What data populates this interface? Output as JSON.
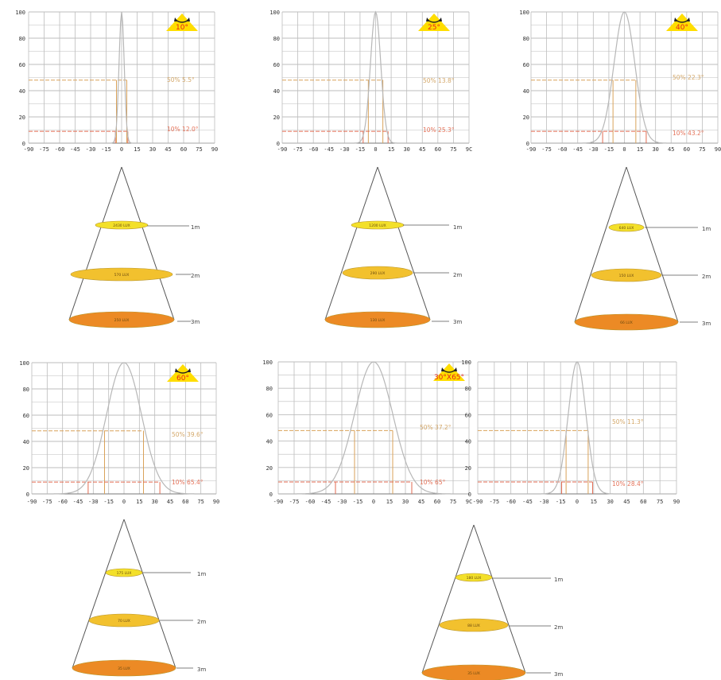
{
  "colors": {
    "grid": "#bdbdbd",
    "curve": "#b7b7b7",
    "half_line": "#d9a25a",
    "tenth_line": "#e26a50",
    "half_text": "#d4a86a",
    "tenth_text": "#e5735a",
    "badge_fill": "#ffdd00",
    "badge_text": "#e4261c",
    "ring1": "#f3e02a",
    "ring2": "#f2c12e",
    "ring3": "#ec8a25",
    "cone_line": "#555555"
  },
  "chart_data": [
    {
      "type": "line",
      "beam_label": "10°",
      "x_ticks": [
        "-90",
        "-75",
        "-60",
        "-45",
        "-30",
        "-15",
        "0",
        "15",
        "30",
        "45",
        "60",
        "75",
        "90"
      ],
      "y_ticks": [
        "0",
        "20",
        "40",
        "60",
        "80",
        "100"
      ],
      "xlim": [
        -90,
        90
      ],
      "ylim": [
        0,
        100
      ],
      "curve_width": 2.5,
      "half_angle": 5,
      "tenth_angle": 6,
      "half_label": "50% 5.5°",
      "tenth_label": "10% 12.0°",
      "cone": {
        "distances": [
          "1m",
          "2m",
          "3m"
        ],
        "lux": [
          "2430 LUX",
          "570 LUX",
          "250 LUX"
        ]
      }
    },
    {
      "type": "line",
      "beam_label": "25°",
      "x_ticks": [
        "-90",
        "-75",
        "-60",
        "-45",
        "-30",
        "-15",
        "0",
        "15",
        "30",
        "45",
        "60",
        "75",
        "9C"
      ],
      "y_ticks": [
        "0",
        "20",
        "40",
        "60",
        "80",
        "100"
      ],
      "xlim": [
        -90,
        90
      ],
      "ylim": [
        0,
        100
      ],
      "curve_width": 5,
      "half_angle": 7,
      "tenth_angle": 12,
      "half_label": "50% 13.8°",
      "tenth_label": "10% 25.3°",
      "cone": {
        "distances": [
          "1m",
          "2m",
          "3m"
        ],
        "lux": [
          "1200 LUX",
          "290 LUX",
          "130 LUX"
        ]
      }
    },
    {
      "type": "line",
      "beam_label": "40°",
      "x_ticks": [
        "-90",
        "-75",
        "-60",
        "-45",
        "-30",
        "-15",
        "0",
        "15",
        "30",
        "45",
        "60",
        "75",
        "90"
      ],
      "y_ticks": [
        "0",
        "20",
        "40",
        "60",
        "80",
        "100"
      ],
      "xlim": [
        -90,
        90
      ],
      "ylim": [
        0,
        100
      ],
      "curve_width": 10,
      "half_angle": 11,
      "tenth_angle": 21,
      "half_label": "50% 22.3°",
      "tenth_label": "10% 43.2°",
      "cone": {
        "distances": [
          "1m",
          "2m",
          "3m"
        ],
        "lux": [
          "640 LUX",
          "150 LUX",
          "66 LUX"
        ]
      }
    },
    {
      "type": "line",
      "beam_label": "60°",
      "x_ticks": [
        "-90",
        "-75",
        "-60",
        "-45",
        "-30",
        "-15",
        "0",
        "15",
        "30",
        "45",
        "60",
        "75",
        "90"
      ],
      "y_ticks": [
        "0",
        "20",
        "40",
        "60",
        "80",
        "100"
      ],
      "xlim": [
        -90,
        90
      ],
      "ylim": [
        0,
        100
      ],
      "curve_width": 17,
      "half_angle": 19,
      "tenth_angle": 35,
      "half_label": "50% 39.6°",
      "tenth_label": "10% 65.4°",
      "cone": {
        "distances": [
          "1m",
          "2m",
          "3m"
        ],
        "lux": [
          "175 LUX",
          "70 LUX",
          "35 LUX"
        ]
      }
    },
    {
      "type": "line",
      "beam_label": "30°X65°",
      "x_ticks": [
        "-90",
        "-75",
        "-60",
        "-45",
        "-30",
        "-15",
        "0",
        "15",
        "30",
        "45",
        "60",
        "75",
        "9C"
      ],
      "y_ticks": [
        "0",
        "20",
        "40",
        "60",
        "80",
        "100"
      ],
      "xlim": [
        -90,
        90
      ],
      "ylim": [
        0,
        100
      ],
      "curve_width": 18,
      "half_angle": 18,
      "tenth_angle": 36,
      "half_label": "50% 37.2°",
      "tenth_label": "10% 65°",
      "cone": null
    },
    {
      "type": "line",
      "beam_label": "",
      "x_ticks": [
        "-90",
        "-75",
        "-60",
        "-45",
        "-30",
        "-15",
        "0",
        "15",
        "30",
        "45",
        "60",
        "75",
        "90"
      ],
      "y_ticks": [
        "0",
        "20",
        "40",
        "60",
        "80",
        "100"
      ],
      "xlim": [
        -90,
        90
      ],
      "ylim": [
        0,
        100
      ],
      "curve_width": 8,
      "half_angle": 10,
      "tenth_angle": 14,
      "half_label": "50% 11.3°",
      "tenth_label": "10% 28.4°",
      "cone": {
        "distances": [
          "1m",
          "2m",
          "3m"
        ],
        "lux": [
          "180 LUX",
          "88 LUX",
          "35 LUX"
        ]
      }
    }
  ]
}
